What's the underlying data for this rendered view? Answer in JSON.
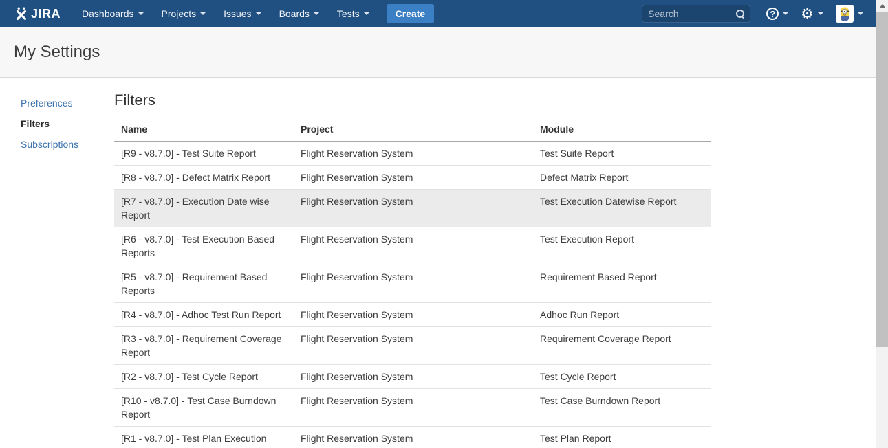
{
  "navbar": {
    "logo_text": "JIRA",
    "menu": [
      {
        "label": "Dashboards"
      },
      {
        "label": "Projects"
      },
      {
        "label": "Issues"
      },
      {
        "label": "Boards"
      },
      {
        "label": "Tests"
      }
    ],
    "create_button_label": "Create",
    "search": {
      "placeholder": "Search",
      "icon": "magnifier"
    },
    "icons": {
      "help": "circled-question-mark",
      "help_glyph": "?",
      "gear": "gear",
      "gear_glyph": "⚙",
      "caret": "triangle-down",
      "avatar": "minion-user-picture"
    }
  },
  "page": {
    "title": "My Settings"
  },
  "sidebar": {
    "items": [
      {
        "label": "Preferences",
        "active": false
      },
      {
        "label": "Filters",
        "active": true
      },
      {
        "label": "Subscriptions",
        "active": false
      }
    ]
  },
  "main": {
    "heading": "Filters",
    "table": {
      "columns": [
        "Name",
        "Project",
        "Module"
      ],
      "rows": [
        {
          "name": "[R9 - v8.7.0] - Test Suite Report",
          "project": "Flight Reservation System",
          "module": "Test Suite Report",
          "highlighted": false
        },
        {
          "name": "[R8 - v8.7.0] - Defect Matrix Report",
          "project": "Flight Reservation System",
          "module": "Defect Matrix Report",
          "highlighted": false
        },
        {
          "name": "[R7 - v8.7.0] - Execution Date wise Report",
          "project": "Flight Reservation System",
          "module": "Test Execution Datewise Report",
          "highlighted": true
        },
        {
          "name": "[R6 - v8.7.0] - Test Execution Based Reports",
          "project": "Flight Reservation System",
          "module": "Test Execution Report",
          "highlighted": false
        },
        {
          "name": "[R5 - v8.7.0] - Requirement Based Reports",
          "project": "Flight Reservation System",
          "module": "Requirement Based Report",
          "highlighted": false
        },
        {
          "name": "[R4 - v8.7.0] - Adhoc Test Run Report",
          "project": "Flight Reservation System",
          "module": "Adhoc Run Report",
          "highlighted": false
        },
        {
          "name": "[R3 - v8.7.0] - Requirement Coverage Report",
          "project": "Flight Reservation System",
          "module": "Requirement Coverage Report",
          "highlighted": false
        },
        {
          "name": "[R2 - v8.7.0] - Test Cycle Report",
          "project": "Flight Reservation System",
          "module": "Test Cycle Report",
          "highlighted": false
        },
        {
          "name": "[R10 - v8.7.0] - Test Case Burndown Report",
          "project": "Flight Reservation System",
          "module": "Test Case Burndown Report",
          "highlighted": false
        },
        {
          "name": "[R1 - v8.7.0] - Test Plan Execution",
          "project": "Flight Reservation System",
          "module": "Test Plan Report",
          "highlighted": false
        }
      ]
    }
  },
  "colors": {
    "navbar_bg": "#205081",
    "create_button_bg": "#3b7fc4",
    "link_blue": "#3b73af",
    "row_highlight": "#ebebeb",
    "band_bg": "#f7f7f7"
  }
}
